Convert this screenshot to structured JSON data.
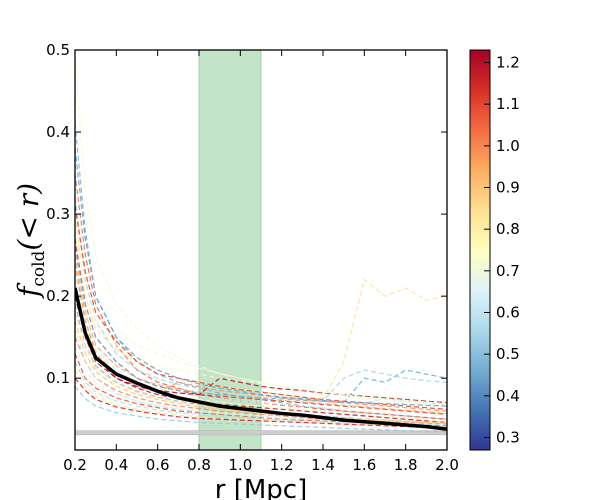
{
  "chart_data": {
    "type": "line",
    "xlabel": "r [Mpc]",
    "ylabel": "f_cold(<r)",
    "ylabel_main": "f",
    "ylabel_sub": "cold",
    "ylabel_rest": "(< r)",
    "xlim": [
      0.2,
      2.0
    ],
    "ylim": [
      0.0125,
      0.5
    ],
    "xticks": [
      "0.2",
      "0.4",
      "0.6",
      "0.8",
      "1.0",
      "1.2",
      "1.4",
      "1.6",
      "1.8",
      "2.0"
    ],
    "yticks": [
      "0.1",
      "0.2",
      "0.3",
      "0.4",
      "0.5"
    ],
    "shaded_band": {
      "x_start": 0.8,
      "x_end": 1.1,
      "color": "#c2e4c8"
    },
    "baseline_band": {
      "y_low": 0.031,
      "y_high": 0.036,
      "color": "#cccccc"
    },
    "colorbar": {
      "min": 0.27,
      "max": 1.23,
      "ticks": [
        "0.3",
        "0.4",
        "0.5",
        "0.6",
        "0.7",
        "0.8",
        "0.9",
        "1.0",
        "1.1",
        "1.2"
      ],
      "colormap": "RdYlBu_r",
      "stops": [
        "#313695",
        "#4575b4",
        "#74add1",
        "#abd9e9",
        "#e0f3f8",
        "#ffffbf",
        "#fee090",
        "#fdae61",
        "#f46d43",
        "#d73027",
        "#a50026"
      ]
    },
    "x": [
      0.2,
      0.25,
      0.3,
      0.4,
      0.5,
      0.6,
      0.7,
      0.8,
      0.9,
      1.0,
      1.1,
      1.2,
      1.3,
      1.4,
      1.5,
      1.6,
      1.7,
      1.8,
      1.9,
      2.0
    ],
    "mean": {
      "name": "mean profile",
      "values": [
        0.21,
        0.155,
        0.125,
        0.105,
        0.094,
        0.084,
        0.076,
        0.071,
        0.066,
        0.063,
        0.06,
        0.057,
        0.055,
        0.052,
        0.049,
        0.047,
        0.045,
        0.043,
        0.041,
        0.038
      ]
    },
    "series": [
      {
        "c": 0.72,
        "values": [
          0.49,
          0.33,
          0.25,
          0.19,
          0.16,
          0.14,
          0.125,
          0.115,
          0.105,
          0.1,
          0.095,
          0.09,
          0.085,
          0.08,
          0.078,
          0.075,
          0.072,
          0.07,
          0.068,
          0.066
        ]
      },
      {
        "c": 0.48,
        "values": [
          0.41,
          0.28,
          0.2,
          0.15,
          0.12,
          0.105,
          0.095,
          0.088,
          0.082,
          0.078,
          0.074,
          0.07,
          0.066,
          0.063,
          0.06,
          0.058,
          0.056,
          0.054,
          0.052,
          0.05
        ]
      },
      {
        "c": 1.05,
        "values": [
          0.35,
          0.25,
          0.19,
          0.14,
          0.11,
          0.095,
          0.088,
          0.08,
          0.076,
          0.072,
          0.07,
          0.067,
          0.065,
          0.062,
          0.06,
          0.058,
          0.056,
          0.054,
          0.052,
          0.05
        ]
      },
      {
        "c": 0.55,
        "values": [
          0.32,
          0.22,
          0.17,
          0.13,
          0.11,
          0.1,
          0.092,
          0.088,
          0.085,
          0.082,
          0.08,
          0.077,
          0.075,
          0.072,
          0.1,
          0.11,
          0.105,
          0.1,
          0.097,
          0.095
        ]
      },
      {
        "c": 0.84,
        "values": [
          0.3,
          0.2,
          0.16,
          0.135,
          0.12,
          0.11,
          0.1,
          0.095,
          0.09,
          0.087,
          0.084,
          0.08,
          0.077,
          0.074,
          0.12,
          0.22,
          0.2,
          0.21,
          0.195,
          0.2
        ]
      },
      {
        "c": 1.12,
        "values": [
          0.27,
          0.19,
          0.15,
          0.12,
          0.1,
          0.09,
          0.085,
          0.08,
          0.078,
          0.076,
          0.074,
          0.072,
          0.07,
          0.068,
          0.066,
          0.064,
          0.062,
          0.06,
          0.058,
          0.056
        ]
      },
      {
        "c": 0.95,
        "values": [
          0.25,
          0.18,
          0.14,
          0.115,
          0.1,
          0.092,
          0.087,
          0.083,
          0.08,
          0.077,
          0.075,
          0.073,
          0.071,
          0.069,
          0.067,
          0.065,
          0.063,
          0.061,
          0.059,
          0.057
        ]
      },
      {
        "c": 0.62,
        "values": [
          0.23,
          0.17,
          0.135,
          0.11,
          0.095,
          0.087,
          0.082,
          0.078,
          0.075,
          0.072,
          0.07,
          0.068,
          0.066,
          0.064,
          0.062,
          0.07,
          0.075,
          0.072,
          0.07,
          0.068
        ]
      },
      {
        "c": 0.78,
        "values": [
          0.22,
          0.16,
          0.13,
          0.105,
          0.092,
          0.084,
          0.078,
          0.074,
          0.071,
          0.068,
          0.066,
          0.064,
          0.062,
          0.06,
          0.058,
          0.056,
          0.054,
          0.052,
          0.05,
          0.048
        ]
      },
      {
        "c": 1.18,
        "values": [
          0.2,
          0.15,
          0.12,
          0.1,
          0.088,
          0.08,
          0.075,
          0.071,
          0.068,
          0.066,
          0.064,
          0.062,
          0.06,
          0.058,
          0.056,
          0.054,
          0.052,
          0.05,
          0.048,
          0.046
        ]
      },
      {
        "c": 0.5,
        "values": [
          0.19,
          0.14,
          0.115,
          0.095,
          0.084,
          0.077,
          0.072,
          0.068,
          0.065,
          0.062,
          0.06,
          0.058,
          0.056,
          0.054,
          0.052,
          0.05,
          0.049,
          0.048,
          0.047,
          0.046
        ]
      },
      {
        "c": 0.9,
        "values": [
          0.17,
          0.13,
          0.108,
          0.09,
          0.08,
          0.074,
          0.069,
          0.065,
          0.062,
          0.06,
          0.058,
          0.056,
          0.054,
          0.052,
          0.05,
          0.049,
          0.048,
          0.047,
          0.046,
          0.045
        ]
      },
      {
        "c": 1.0,
        "values": [
          0.15,
          0.12,
          0.1,
          0.085,
          0.076,
          0.07,
          0.066,
          0.063,
          0.06,
          0.058,
          0.056,
          0.054,
          0.052,
          0.05,
          0.049,
          0.048,
          0.047,
          0.046,
          0.045,
          0.044
        ]
      },
      {
        "c": 0.67,
        "values": [
          0.14,
          0.11,
          0.094,
          0.08,
          0.072,
          0.067,
          0.063,
          0.06,
          0.058,
          0.056,
          0.054,
          0.052,
          0.05,
          0.049,
          0.048,
          0.047,
          0.046,
          0.045,
          0.044,
          0.043
        ]
      },
      {
        "c": 1.08,
        "values": [
          0.13,
          0.1,
          0.088,
          0.076,
          0.069,
          0.064,
          0.06,
          0.058,
          0.056,
          0.054,
          0.052,
          0.05,
          0.049,
          0.048,
          0.047,
          0.046,
          0.045,
          0.044,
          0.043,
          0.042
        ]
      },
      {
        "c": 0.58,
        "values": [
          0.12,
          0.095,
          0.083,
          0.072,
          0.066,
          0.061,
          0.058,
          0.056,
          0.054,
          0.052,
          0.05,
          0.049,
          0.048,
          0.047,
          0.046,
          0.045,
          0.044,
          0.043,
          0.042,
          0.041
        ]
      },
      {
        "c": 0.82,
        "values": [
          0.11,
          0.09,
          0.078,
          0.068,
          0.062,
          0.058,
          0.055,
          0.053,
          0.051,
          0.05,
          0.049,
          0.048,
          0.047,
          0.046,
          0.045,
          0.044,
          0.043,
          0.042,
          0.041,
          0.04
        ]
      },
      {
        "c": 1.15,
        "values": [
          0.1,
          0.085,
          0.074,
          0.065,
          0.06,
          0.056,
          0.053,
          0.051,
          0.05,
          0.049,
          0.048,
          0.047,
          0.046,
          0.045,
          0.044,
          0.043,
          0.042,
          0.041,
          0.04,
          0.039
        ]
      },
      {
        "c": 0.46,
        "values": [
          0.26,
          0.19,
          0.15,
          0.12,
          0.1,
          0.09,
          0.085,
          0.082,
          0.08,
          0.078,
          0.076,
          0.075,
          0.073,
          0.072,
          0.07,
          0.1,
          0.095,
          0.11,
          0.105,
          0.1
        ]
      },
      {
        "c": 0.74,
        "values": [
          0.28,
          0.21,
          0.17,
          0.14,
          0.125,
          0.115,
          0.11,
          0.105,
          0.1,
          0.097,
          0.094,
          0.09,
          0.087,
          0.084,
          0.081,
          0.078,
          0.076,
          0.074,
          0.072,
          0.07
        ]
      },
      {
        "c": 0.98,
        "values": [
          0.24,
          0.17,
          0.13,
          0.105,
          0.09,
          0.083,
          0.095,
          0.09,
          0.085,
          0.082,
          0.079,
          0.076,
          0.074,
          0.072,
          0.07,
          0.068,
          0.066,
          0.064,
          0.062,
          0.06
        ]
      },
      {
        "c": 1.2,
        "values": [
          0.21,
          0.16,
          0.125,
          0.1,
          0.09,
          0.085,
          0.082,
          0.08,
          0.1,
          0.095,
          0.09,
          0.087,
          0.085,
          0.082,
          0.08,
          0.078,
          0.076,
          0.074,
          0.072,
          0.07
        ]
      },
      {
        "c": 0.6,
        "values": [
          0.16,
          0.12,
          0.1,
          0.082,
          0.072,
          0.066,
          0.062,
          0.059,
          0.057,
          0.055,
          0.053,
          0.051,
          0.05,
          0.049,
          0.048,
          0.047,
          0.046,
          0.045,
          0.044,
          0.043
        ]
      },
      {
        "c": 0.86,
        "values": [
          0.18,
          0.14,
          0.112,
          0.094,
          0.083,
          0.076,
          0.071,
          0.067,
          0.064,
          0.061,
          0.059,
          0.057,
          0.055,
          0.053,
          0.051,
          0.05,
          0.049,
          0.048,
          0.047,
          0.046
        ]
      },
      {
        "c": 0.52,
        "values": [
          0.09,
          0.075,
          0.066,
          0.058,
          0.054,
          0.05,
          0.048,
          0.046,
          0.045,
          0.044,
          0.043,
          0.042,
          0.041,
          0.04,
          0.039,
          0.038,
          0.037,
          0.036,
          0.035,
          0.035
        ]
      },
      {
        "c": 1.1,
        "values": [
          0.31,
          0.23,
          0.18,
          0.145,
          0.12,
          0.105,
          0.1,
          0.095,
          0.09,
          0.086,
          0.083,
          0.08,
          0.077,
          0.074,
          0.072,
          0.07,
          0.068,
          0.066,
          0.064,
          0.062
        ]
      },
      {
        "c": 0.7,
        "values": [
          0.36,
          0.26,
          0.2,
          0.16,
          0.14,
          0.13,
          0.12,
          0.112,
          0.106,
          0.1,
          0.095,
          0.09,
          0.086,
          0.083,
          0.08,
          0.077,
          0.075,
          0.073,
          0.071,
          0.069
        ]
      },
      {
        "c": 0.44,
        "values": [
          0.38,
          0.27,
          0.2,
          0.15,
          0.125,
          0.11,
          0.1,
          0.093,
          0.088,
          0.084,
          0.08,
          0.077,
          0.075,
          0.073,
          0.071,
          0.07,
          0.069,
          0.068,
          0.067,
          0.066
        ]
      }
    ]
  }
}
